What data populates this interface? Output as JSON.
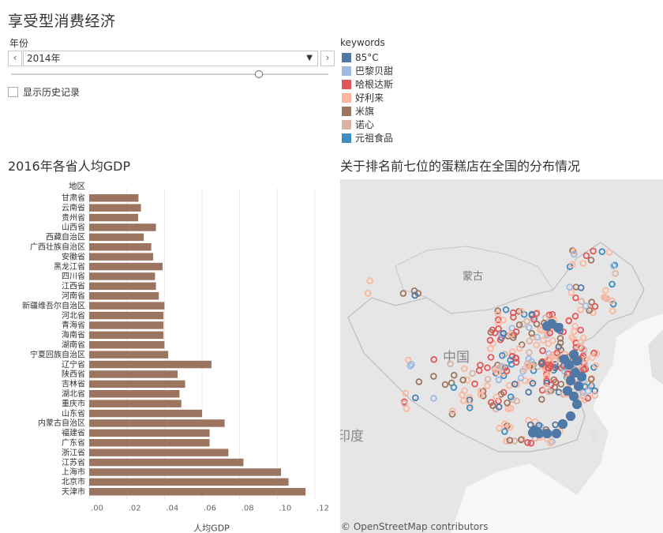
{
  "dashboard": {
    "title": "享受型消费经济"
  },
  "filters": {
    "year_label": "年份",
    "year_value": "2014年",
    "year_slider_fraction": 0.78,
    "prev_label": "‹",
    "next_label": "›",
    "history_label": "显示历史记录"
  },
  "legend": {
    "title": "keywords",
    "items": [
      {
        "label": "85°C",
        "color": "#4e79a7"
      },
      {
        "label": "巴黎贝甜",
        "color": "#a0b9e0"
      },
      {
        "label": "哈根达斯",
        "color": "#e15759"
      },
      {
        "label": "好利来",
        "color": "#ffb59c"
      },
      {
        "label": "米旗",
        "color": "#9c7561"
      },
      {
        "label": "诺心",
        "color": "#d9b4a6"
      },
      {
        "label": "元祖食品",
        "color": "#3c8ec4"
      }
    ]
  },
  "chart_data": {
    "type": "bar",
    "orientation": "horizontal",
    "title": "2016年各省人均GDP",
    "category_header": "地区",
    "xlabel": "人均GDP",
    "xlim": [
      0,
      0.12
    ],
    "x_ticks": [
      ".00",
      ".02",
      ".04",
      ".06",
      ".08",
      ".10",
      ".12"
    ],
    "x_tick_values": [
      0,
      0.02,
      0.04,
      0.06,
      0.08,
      0.1,
      0.12
    ],
    "bar_color": "#9c7561",
    "categories": [
      "甘肃省",
      "云南省",
      "贵州省",
      "山西省",
      "西藏自治区",
      "广西壮族自治区",
      "安徽省",
      "黑龙江省",
      "四川省",
      "江西省",
      "河南省",
      "新疆维吾尔自治区",
      "河北省",
      "青海省",
      "海南省",
      "湖南省",
      "宁夏回族自治区",
      "辽宁省",
      "陕西省",
      "吉林省",
      "湖北省",
      "重庆市",
      "山东省",
      "内蒙古自治区",
      "福建省",
      "广东省",
      "浙江省",
      "江苏省",
      "上海市",
      "北京市",
      "天津市"
    ],
    "values": [
      0.0262,
      0.0275,
      0.026,
      0.0355,
      0.029,
      0.033,
      0.034,
      0.039,
      0.035,
      0.0355,
      0.037,
      0.04,
      0.0395,
      0.0395,
      0.0395,
      0.04,
      0.042,
      0.065,
      0.047,
      0.051,
      0.048,
      0.049,
      0.06,
      0.072,
      0.064,
      0.064,
      0.074,
      0.082,
      0.102,
      0.106,
      0.115
    ]
  },
  "map": {
    "title": "关于排名前七位的蛋糕店在全国的分布情况",
    "labels": [
      "蒙古",
      "中国",
      "印度"
    ],
    "attribution": "© OpenStreetMap contributors"
  }
}
